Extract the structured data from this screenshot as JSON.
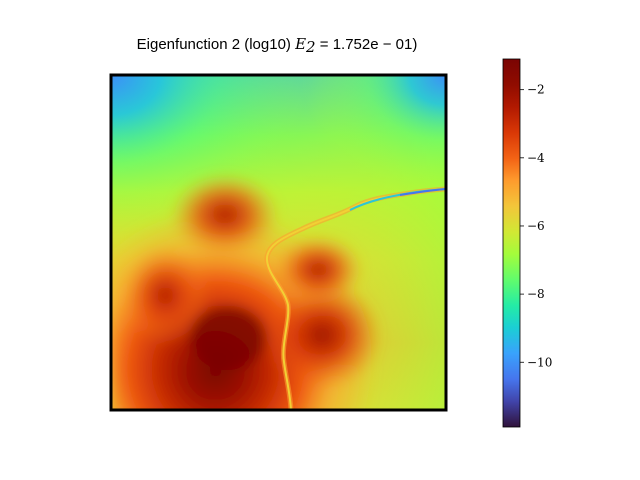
{
  "chart_data": {
    "type": "heatmap",
    "title": {
      "prefix": "Eigenfunction 2 (log10) ",
      "math": "E",
      "subscript": "2",
      "suffix": " = 1.752e − 01)"
    },
    "colorbar": {
      "colormap": "turbo",
      "range": [
        -11.9,
        -1.1
      ],
      "ticks": [
        -2,
        -4,
        -6,
        -8,
        -10
      ],
      "tick_labels": [
        "−2",
        "−4",
        "−6",
        "−8",
        "−10"
      ]
    },
    "heatmap": {
      "description_values": {
        "min_value": -11.9,
        "max_value": -1.1,
        "peak_region": "lower-left quadrant",
        "low_region": "top corners and thin curved ridge"
      }
    },
    "axes": {
      "xlabel": "",
      "ylabel": "",
      "ticks_visible": false,
      "frame": true
    }
  }
}
